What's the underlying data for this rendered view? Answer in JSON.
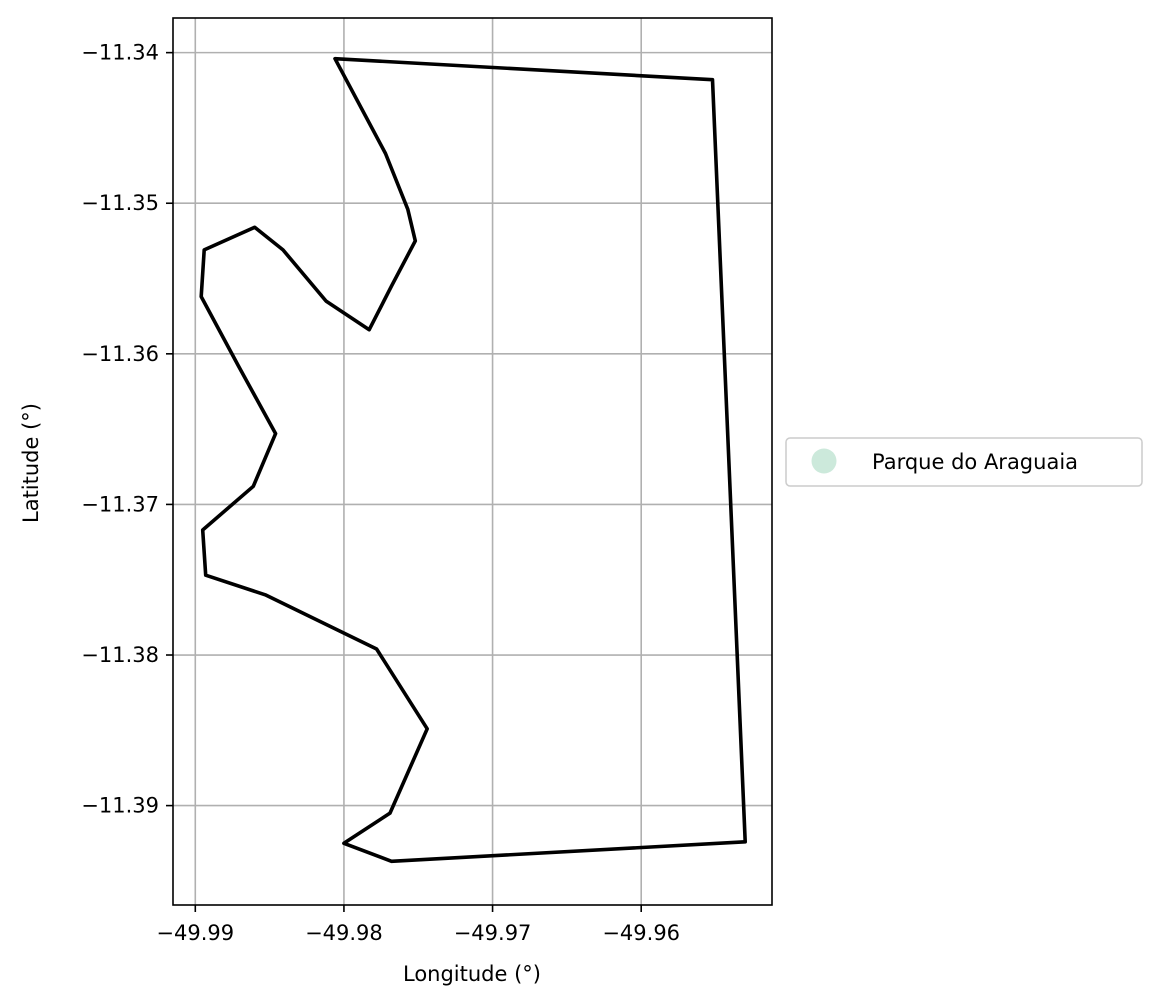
{
  "chart_data": {
    "type": "line",
    "xlabel": "Longitude (°)",
    "ylabel": "Latitude (°)",
    "xlim": [
      -49.9915,
      -49.9512
    ],
    "ylim": [
      -11.3966,
      -11.3377
    ],
    "xticks": [
      -49.99,
      -49.98,
      -49.97,
      -49.96
    ],
    "xtick_labels": [
      "−49.99",
      "−49.98",
      "−49.97",
      "−49.96"
    ],
    "yticks": [
      -11.34,
      -11.35,
      -11.36,
      -11.37,
      -11.38,
      -11.39
    ],
    "ytick_labels": [
      "−11.34",
      "−11.35",
      "−11.36",
      "−11.37",
      "−11.38",
      "−11.39"
    ],
    "grid": true,
    "legend_position": "outside-right",
    "legend": [
      {
        "label": "Parque do Araguaia",
        "color": "#cce9db",
        "marker": "circle"
      }
    ],
    "series": [
      {
        "name": "Parque do Araguaia",
        "color": "#000000",
        "points": [
          [
            -49.9806,
            -11.3404
          ],
          [
            -49.9552,
            -11.3418
          ],
          [
            -49.953,
            -11.3924
          ],
          [
            -49.9768,
            -11.3937
          ],
          [
            -49.98,
            -11.3925
          ],
          [
            -49.9769,
            -11.3905
          ],
          [
            -49.9744,
            -11.3849
          ],
          [
            -49.9778,
            -11.3796
          ],
          [
            -49.9853,
            -11.376
          ],
          [
            -49.9893,
            -11.3747
          ],
          [
            -49.9895,
            -11.3717
          ],
          [
            -49.9861,
            -11.3688
          ],
          [
            -49.9846,
            -11.3653
          ],
          [
            -49.9871,
            -11.3608
          ],
          [
            -49.9896,
            -11.3562
          ],
          [
            -49.9894,
            -11.3531
          ],
          [
            -49.986,
            -11.3516
          ],
          [
            -49.9841,
            -11.3531
          ],
          [
            -49.9812,
            -11.3565
          ],
          [
            -49.9783,
            -11.3584
          ],
          [
            -49.9768,
            -11.3555
          ],
          [
            -49.9752,
            -11.3525
          ],
          [
            -49.9757,
            -11.3504
          ],
          [
            -49.9772,
            -11.3467
          ],
          [
            -49.9806,
            -11.3404
          ]
        ]
      }
    ]
  }
}
